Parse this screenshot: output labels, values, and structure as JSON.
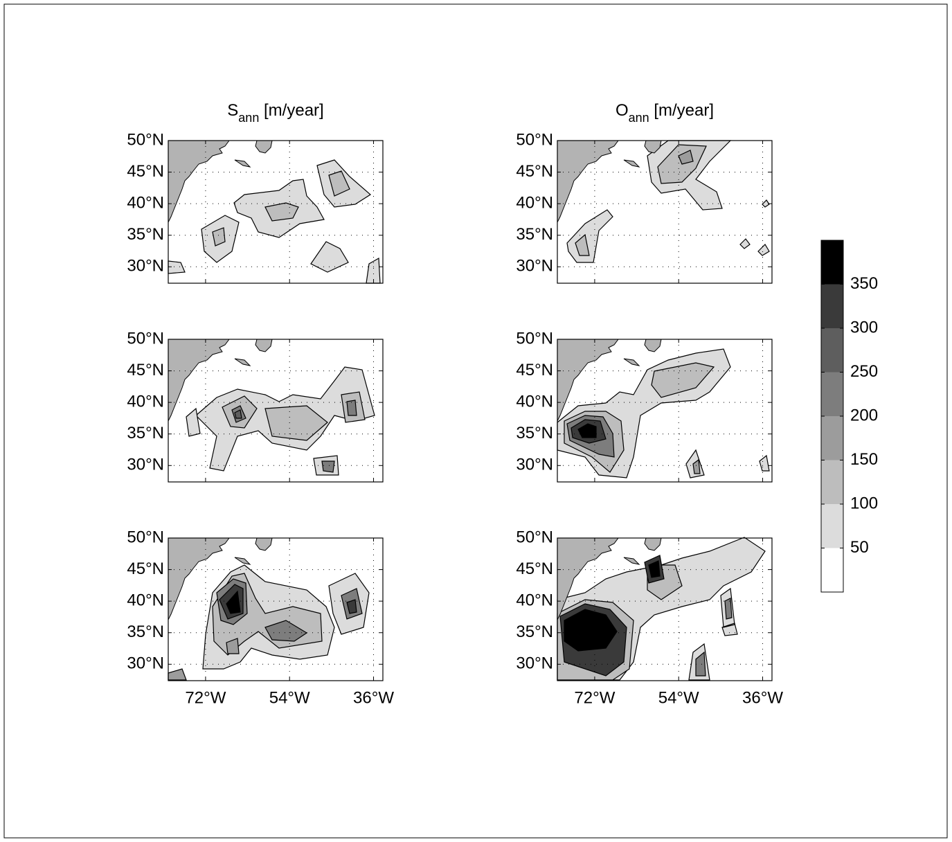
{
  "chart_data": [
    {
      "type": "contour",
      "title": [
        "S",
        "ann",
        " [m/year]"
      ],
      "xlim": [
        -80,
        -34
      ],
      "xticks": [
        -72,
        -54,
        -36
      ],
      "xticklabels": false,
      "ylim": [
        27.4,
        50
      ],
      "yticks": [
        {
          "value": 50,
          "label": "50°N"
        },
        {
          "value": 45,
          "label": "45°N"
        },
        {
          "value": 40,
          "label": "40°N"
        },
        {
          "value": 35,
          "label": "35°N"
        },
        {
          "value": 30,
          "label": "30°N"
        }
      ],
      "grid": true
    },
    {
      "type": "contour",
      "title": [
        "O",
        "ann",
        " [m/year]"
      ],
      "xlim": [
        -80,
        -34
      ],
      "xticks": [
        -72,
        -54,
        -36
      ],
      "xticklabels": false,
      "ylim": [
        27.4,
        50
      ],
      "yticks": [
        {
          "value": 50,
          "label": "50°N"
        },
        {
          "value": 45,
          "label": "45°N"
        },
        {
          "value": 40,
          "label": "40°N"
        },
        {
          "value": 35,
          "label": "35°N"
        },
        {
          "value": 30,
          "label": "30°N"
        }
      ],
      "grid": true
    },
    {
      "type": "contour",
      "xlim": [
        -80,
        -34
      ],
      "xticks": [
        -72,
        -54,
        -36
      ],
      "xticklabels": false,
      "ylim": [
        27.4,
        50
      ],
      "yticks": [
        {
          "value": 50,
          "label": "50°N"
        },
        {
          "value": 45,
          "label": "45°N"
        },
        {
          "value": 40,
          "label": "40°N"
        },
        {
          "value": 35,
          "label": "35°N"
        },
        {
          "value": 30,
          "label": "30°N"
        }
      ],
      "grid": true
    },
    {
      "type": "contour",
      "xlim": [
        -80,
        -34
      ],
      "xticks": [
        -72,
        -54,
        -36
      ],
      "xticklabels": false,
      "ylim": [
        27.4,
        50
      ],
      "yticks": [
        {
          "value": 50,
          "label": "50°N"
        },
        {
          "value": 45,
          "label": "45°N"
        },
        {
          "value": 40,
          "label": "40°N"
        },
        {
          "value": 35,
          "label": "35°N"
        },
        {
          "value": 30,
          "label": "30°N"
        }
      ],
      "grid": true
    },
    {
      "type": "contour",
      "xlim": [
        -80,
        -34
      ],
      "xticks": [
        {
          "value": -72,
          "label": "72°W"
        },
        {
          "value": -54,
          "label": "54°W"
        },
        {
          "value": -36,
          "label": "36°W"
        }
      ],
      "xticklabels": true,
      "ylim": [
        27.4,
        50
      ],
      "yticks": [
        {
          "value": 50,
          "label": "50°N"
        },
        {
          "value": 45,
          "label": "45°N"
        },
        {
          "value": 40,
          "label": "40°N"
        },
        {
          "value": 35,
          "label": "35°N"
        },
        {
          "value": 30,
          "label": "30°N"
        }
      ],
      "grid": true
    },
    {
      "type": "contour",
      "xlim": [
        -80,
        -34
      ],
      "xticks": [
        {
          "value": -72,
          "label": "72°W"
        },
        {
          "value": -54,
          "label": "54°W"
        },
        {
          "value": -36,
          "label": "36°W"
        }
      ],
      "xticklabels": true,
      "ylim": [
        27.4,
        50
      ],
      "yticks": [
        {
          "value": 50,
          "label": "50°N"
        },
        {
          "value": 45,
          "label": "45°N"
        },
        {
          "value": 40,
          "label": "40°N"
        },
        {
          "value": 35,
          "label": "35°N"
        },
        {
          "value": 30,
          "label": "30°N"
        }
      ],
      "grid": true
    },
    {
      "type": "colorbar",
      "clim": [
        0,
        400
      ],
      "ticks": [
        50,
        100,
        150,
        200,
        250,
        300,
        350
      ],
      "colors": [
        "#ffffff",
        "#dcdcdc",
        "#bdbdbd",
        "#9c9c9c",
        "#7d7d7d",
        "#5e5e5e",
        "#3a3a3a",
        "#000000"
      ]
    }
  ]
}
